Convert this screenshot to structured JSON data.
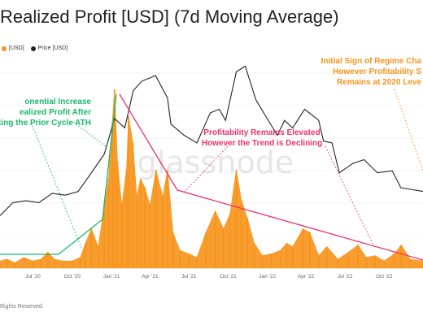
{
  "header": {
    "title": "Realized Profit [USD] (7d Moving Average)"
  },
  "legend": [
    {
      "label": "[USD]",
      "color": "#f7931a"
    },
    {
      "label": "Price [USD]",
      "color": "#222222"
    }
  ],
  "footer": {
    "copyright": "Rights Reserved."
  },
  "watermark": "glassnode",
  "annotations": [
    {
      "lines": [
        "onential Increase",
        "ealized Profit After",
        "aking the Prior Cycle ATH"
      ],
      "color": "#19b86a",
      "align": "end"
    },
    {
      "lines": [
        "Profitability Remains Elevated",
        "However the Trend is Declining"
      ],
      "color": "#f0306a",
      "align": "middle"
    },
    {
      "lines": [
        "Initial Sign of Regime Cha",
        "However Profitability S",
        "Remains at 2020 Leve"
      ],
      "color": "#f7931a",
      "align": "end"
    }
  ],
  "colors": {
    "bars": "#f7931a",
    "price_line": "#222222",
    "trend_line": "#f0306a",
    "green_accent": "#19b86a",
    "grid": "#eeeeee"
  },
  "chart_data": {
    "type": "bar",
    "title": "Realized Profit [USD] (7d Moving Average)",
    "x_ticks": [
      "Jul '20",
      "Oct '20",
      "Jan '21",
      "Apr '21",
      "Jul '21",
      "Oct '21",
      "Jan '22",
      "Apr '22",
      "Jul '22",
      "Oct '22"
    ],
    "x_domain": [
      "2020-04-15",
      "2022-12-31"
    ],
    "grid": true,
    "series": [
      {
        "name": "[USD]",
        "kind": "bar",
        "points": [
          [
            "2020-04-15",
            0.04
          ],
          [
            "2020-05-01",
            0.05
          ],
          [
            "2020-05-20",
            0.03
          ],
          [
            "2020-06-10",
            0.06
          ],
          [
            "2020-06-30",
            0.04
          ],
          [
            "2020-07-20",
            0.05
          ],
          [
            "2020-08-05",
            0.09
          ],
          [
            "2020-08-20",
            0.05
          ],
          [
            "2020-09-10",
            0.04
          ],
          [
            "2020-10-01",
            0.04
          ],
          [
            "2020-10-20",
            0.06
          ],
          [
            "2020-11-01",
            0.14
          ],
          [
            "2020-11-15",
            0.22
          ],
          [
            "2020-12-01",
            0.12
          ],
          [
            "2020-12-15",
            0.35
          ],
          [
            "2020-12-25",
            0.5
          ],
          [
            "2021-01-03",
            0.82
          ],
          [
            "2021-01-08",
            1.0
          ],
          [
            "2021-01-15",
            0.6
          ],
          [
            "2021-01-25",
            0.35
          ],
          [
            "2021-02-05",
            0.55
          ],
          [
            "2021-02-10",
            0.85
          ],
          [
            "2021-02-20",
            0.7
          ],
          [
            "2021-03-01",
            0.4
          ],
          [
            "2021-03-10",
            0.5
          ],
          [
            "2021-03-20",
            0.45
          ],
          [
            "2021-04-01",
            0.35
          ],
          [
            "2021-04-15",
            0.55
          ],
          [
            "2021-05-01",
            0.4
          ],
          [
            "2021-05-12",
            0.55
          ],
          [
            "2021-05-25",
            0.2
          ],
          [
            "2021-06-10",
            0.1
          ],
          [
            "2021-07-01",
            0.08
          ],
          [
            "2021-07-20",
            0.06
          ],
          [
            "2021-08-10",
            0.2
          ],
          [
            "2021-09-01",
            0.32
          ],
          [
            "2021-09-20",
            0.22
          ],
          [
            "2021-10-05",
            0.3
          ],
          [
            "2021-10-20",
            0.55
          ],
          [
            "2021-11-01",
            0.38
          ],
          [
            "2021-11-15",
            0.28
          ],
          [
            "2021-12-01",
            0.14
          ],
          [
            "2021-12-20",
            0.07
          ],
          [
            "2022-01-10",
            0.08
          ],
          [
            "2022-02-01",
            0.1
          ],
          [
            "2022-02-15",
            0.14
          ],
          [
            "2022-03-01",
            0.12
          ],
          [
            "2022-03-25",
            0.22
          ],
          [
            "2022-04-10",
            0.2
          ],
          [
            "2022-05-01",
            0.07
          ],
          [
            "2022-05-20",
            0.12
          ],
          [
            "2022-06-15",
            0.05
          ],
          [
            "2022-07-10",
            0.09
          ],
          [
            "2022-08-01",
            0.13
          ],
          [
            "2022-08-20",
            0.06
          ],
          [
            "2022-09-10",
            0.07
          ],
          [
            "2022-10-01",
            0.04
          ],
          [
            "2022-10-25",
            0.08
          ],
          [
            "2022-11-10",
            0.13
          ],
          [
            "2022-12-01",
            0.05
          ],
          [
            "2022-12-31",
            0.04
          ]
        ]
      },
      {
        "name": "Price [USD]",
        "kind": "line",
        "points": [
          [
            "2020-04-15",
            0.15
          ],
          [
            "2020-05-15",
            0.22
          ],
          [
            "2020-06-15",
            0.23
          ],
          [
            "2020-07-15",
            0.22
          ],
          [
            "2020-08-15",
            0.27
          ],
          [
            "2020-09-15",
            0.26
          ],
          [
            "2020-10-15",
            0.28
          ],
          [
            "2020-11-15",
            0.38
          ],
          [
            "2020-12-15",
            0.48
          ],
          [
            "2021-01-08",
            0.67
          ],
          [
            "2021-02-01",
            0.62
          ],
          [
            "2021-02-21",
            0.82
          ],
          [
            "2021-03-13",
            0.87
          ],
          [
            "2021-04-14",
            0.9
          ],
          [
            "2021-05-12",
            0.78
          ],
          [
            "2021-05-20",
            0.64
          ],
          [
            "2021-06-20",
            0.58
          ],
          [
            "2021-07-20",
            0.54
          ],
          [
            "2021-08-20",
            0.7
          ],
          [
            "2021-09-10",
            0.72
          ],
          [
            "2021-09-25",
            0.66
          ],
          [
            "2021-10-20",
            0.92
          ],
          [
            "2021-11-10",
            0.95
          ],
          [
            "2021-12-05",
            0.77
          ],
          [
            "2022-01-24",
            0.58
          ],
          [
            "2022-02-10",
            0.66
          ],
          [
            "2022-03-01",
            0.62
          ],
          [
            "2022-03-29",
            0.72
          ],
          [
            "2022-05-01",
            0.66
          ],
          [
            "2022-05-12",
            0.55
          ],
          [
            "2022-06-01",
            0.54
          ],
          [
            "2022-06-18",
            0.38
          ],
          [
            "2022-07-20",
            0.43
          ],
          [
            "2022-08-15",
            0.45
          ],
          [
            "2022-09-15",
            0.38
          ],
          [
            "2022-10-20",
            0.39
          ],
          [
            "2022-11-09",
            0.3
          ],
          [
            "2022-12-31",
            0.28
          ]
        ]
      }
    ]
  }
}
